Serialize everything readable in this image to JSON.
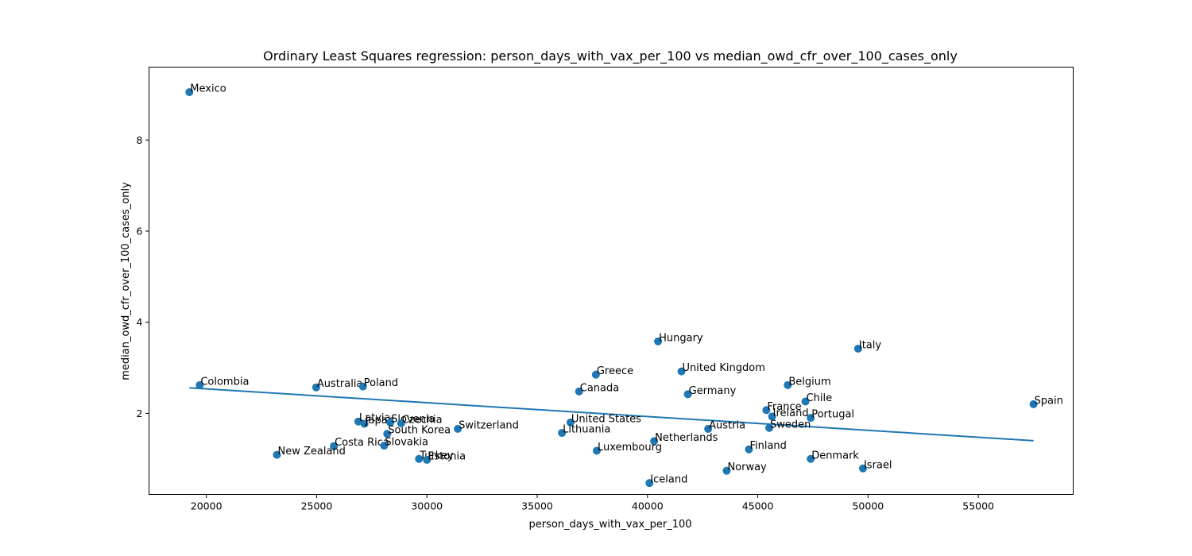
{
  "chart_data": {
    "type": "scatter",
    "title": "Ordinary Least Squares regression: person_days_with_vax_per_100 vs median_owd_cfr_over_100_cases_only",
    "xlabel": "person_days_with_vax_per_100",
    "ylabel": "median_owd_cfr_over_100_cases_only",
    "xlim": [
      17400,
      59300
    ],
    "ylim": [
      0.22,
      9.6
    ],
    "xticks": [
      20000,
      25000,
      30000,
      35000,
      40000,
      45000,
      50000,
      55000
    ],
    "yticks": [
      2,
      4,
      6,
      8
    ],
    "grid": false,
    "point_color": "#1f77b4",
    "line_color": "#1f77b4",
    "regression_line": {
      "x": [
        19230,
        57500
      ],
      "y": [
        2.56,
        1.4
      ]
    },
    "points": [
      {
        "label": "Mexico",
        "x": 19230,
        "y": 9.05
      },
      {
        "label": "Colombia",
        "x": 19700,
        "y": 2.62
      },
      {
        "label": "Australia",
        "x": 24980,
        "y": 2.57
      },
      {
        "label": "Poland",
        "x": 27100,
        "y": 2.59
      },
      {
        "label": "Hungary",
        "x": 40480,
        "y": 3.58
      },
      {
        "label": "Italy",
        "x": 49550,
        "y": 3.42
      },
      {
        "label": "Greece",
        "x": 37660,
        "y": 2.85
      },
      {
        "label": "United Kingdom",
        "x": 41540,
        "y": 2.92
      },
      {
        "label": "Belgium",
        "x": 46360,
        "y": 2.62
      },
      {
        "label": "Canada",
        "x": 36900,
        "y": 2.48
      },
      {
        "label": "Germany",
        "x": 41830,
        "y": 2.42
      },
      {
        "label": "Chile",
        "x": 47160,
        "y": 2.26
      },
      {
        "label": "Spain",
        "x": 57500,
        "y": 2.2
      },
      {
        "label": "France",
        "x": 45390,
        "y": 2.07
      },
      {
        "label": "Ireland",
        "x": 45650,
        "y": 1.93
      },
      {
        "label": "Portugal",
        "x": 47400,
        "y": 1.9
      },
      {
        "label": "Latvia",
        "x": 26890,
        "y": 1.82
      },
      {
        "label": "Japan",
        "x": 27170,
        "y": 1.77
      },
      {
        "label": "Slovenia",
        "x": 28340,
        "y": 1.8
      },
      {
        "label": "Czechia",
        "x": 28830,
        "y": 1.78
      },
      {
        "label": "United States",
        "x": 36510,
        "y": 1.8
      },
      {
        "label": "Switzerland",
        "x": 31400,
        "y": 1.66
      },
      {
        "label": "Austria",
        "x": 42750,
        "y": 1.66
      },
      {
        "label": "Sweden",
        "x": 45520,
        "y": 1.68
      },
      {
        "label": "South Korea",
        "x": 28200,
        "y": 1.55
      },
      {
        "label": "Lithuania",
        "x": 36120,
        "y": 1.57
      },
      {
        "label": "Netherlands",
        "x": 40300,
        "y": 1.39
      },
      {
        "label": "Costa Rica",
        "x": 25780,
        "y": 1.28
      },
      {
        "label": "Slovakia",
        "x": 28060,
        "y": 1.29
      },
      {
        "label": "Finland",
        "x": 44600,
        "y": 1.21
      },
      {
        "label": "Luxembourg",
        "x": 37700,
        "y": 1.18
      },
      {
        "label": "New Zealand",
        "x": 23200,
        "y": 1.09
      },
      {
        "label": "Turkey",
        "x": 29640,
        "y": 1.0
      },
      {
        "label": "Estonia",
        "x": 30000,
        "y": 0.98
      },
      {
        "label": "Denmark",
        "x": 47400,
        "y": 1.0
      },
      {
        "label": "Israel",
        "x": 49770,
        "y": 0.79
      },
      {
        "label": "Norway",
        "x": 43590,
        "y": 0.74
      },
      {
        "label": "Iceland",
        "x": 40090,
        "y": 0.47
      }
    ]
  }
}
